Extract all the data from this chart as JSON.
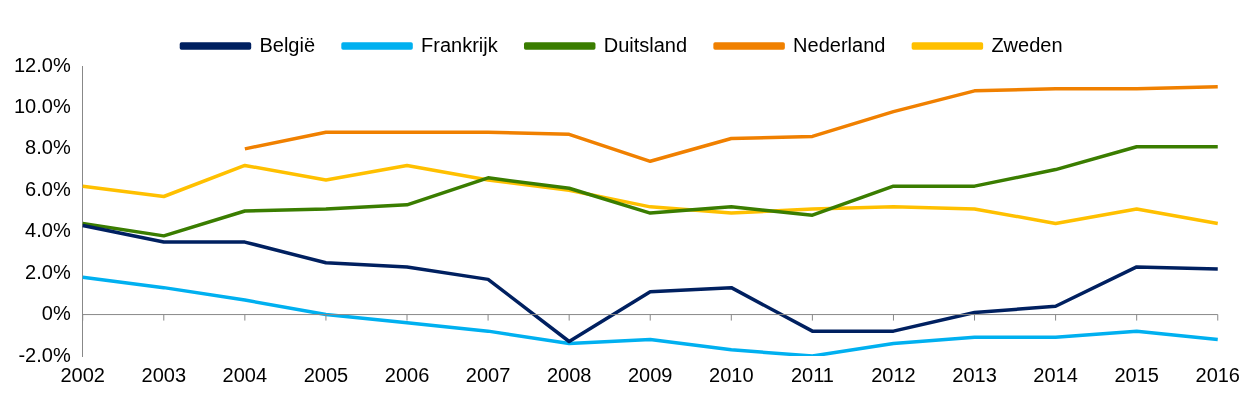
{
  "chart_data": {
    "type": "line",
    "categories": [
      "2002",
      "2003",
      "2004",
      "2005",
      "2006",
      "2007",
      "2008",
      "2009",
      "2010",
      "2011",
      "2012",
      "2013",
      "2014",
      "2015",
      "2016"
    ],
    "ylim": [
      -2,
      12
    ],
    "yticks": [
      {
        "value": -2,
        "label": "-2.0%"
      },
      {
        "value": 0,
        "label": "0%"
      },
      {
        "value": 2,
        "label": "2.0%"
      },
      {
        "value": 4,
        "label": "4.0%"
      },
      {
        "value": 6,
        "label": "6.0%"
      },
      {
        "value": 8,
        "label": "8.0%"
      },
      {
        "value": 10,
        "label": "10.0%"
      },
      {
        "value": 12,
        "label": "12.0%"
      }
    ],
    "grid": false,
    "legend": "top",
    "marker": "none",
    "line_style": "solid",
    "series": [
      {
        "name": "België",
        "color": "#002060",
        "values": [
          4.3,
          3.5,
          3.5,
          2.5,
          2.3,
          1.7,
          -1.3,
          1.1,
          1.3,
          -0.8,
          -0.8,
          0.1,
          0.4,
          2.3,
          2.2
        ]
      },
      {
        "name": "Frankrijk",
        "color": "#00b0f0",
        "values": [
          1.8,
          1.3,
          0.7,
          0,
          -0.4,
          -0.8,
          -1.4,
          -1.2,
          -1.7,
          -2.0,
          -1.4,
          -1.1,
          -1.1,
          -0.8,
          -1.2
        ]
      },
      {
        "name": "Duitsland",
        "color": "#3a7d00",
        "values": [
          4.4,
          3.8,
          5.0,
          5.1,
          5.3,
          6.6,
          6.1,
          4.9,
          5.2,
          4.8,
          6.2,
          6.2,
          7.0,
          8.1,
          8.1
        ]
      },
      {
        "name": "Nederland",
        "color": "#f08000",
        "values": [
          null,
          null,
          8.0,
          8.8,
          8.8,
          8.8,
          8.7,
          7.4,
          8.5,
          8.6,
          9.8,
          10.8,
          10.9,
          10.9,
          11.0
        ]
      },
      {
        "name": "Zweden",
        "color": "#ffc000",
        "values": [
          6.2,
          5.7,
          7.2,
          6.5,
          7.2,
          6.5,
          6.0,
          5.2,
          4.9,
          5.1,
          5.2,
          5.1,
          4.4,
          5.1,
          4.4
        ]
      }
    ]
  }
}
